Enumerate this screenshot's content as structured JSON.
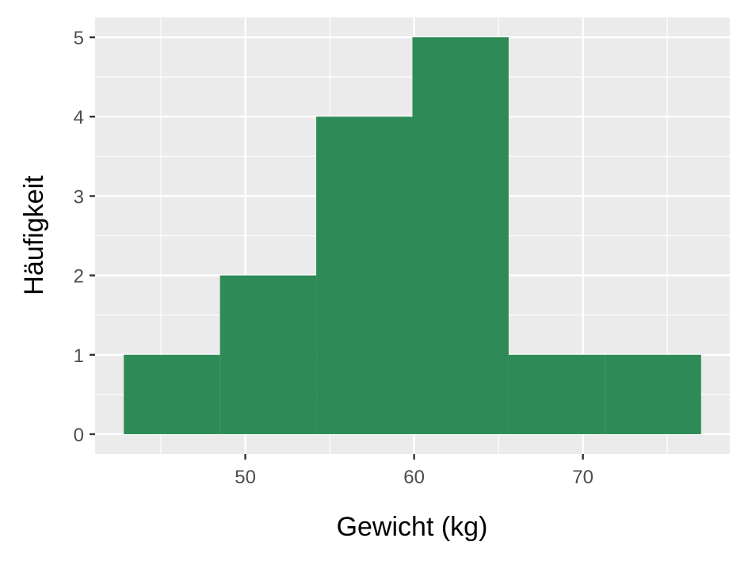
{
  "chart_data": {
    "type": "histogram",
    "xlabel": "Gewicht (kg)",
    "ylabel": "Häufigkeit",
    "bins": [
      {
        "x0": 42.8,
        "x1": 48.5,
        "count": 1
      },
      {
        "x0": 48.5,
        "x1": 54.2,
        "count": 2
      },
      {
        "x0": 54.2,
        "x1": 59.9,
        "count": 4
      },
      {
        "x0": 59.9,
        "x1": 65.6,
        "count": 5
      },
      {
        "x0": 65.6,
        "x1": 71.3,
        "count": 1
      },
      {
        "x0": 71.3,
        "x1": 77.0,
        "count": 1
      }
    ],
    "xticks": [
      50,
      60,
      70
    ],
    "yticks": [
      0,
      1,
      2,
      3,
      4,
      5
    ],
    "xlim": [
      41.1,
      78.7
    ],
    "ylim": [
      -0.25,
      5.25
    ],
    "bar_color": "#2E8B57",
    "panel_background": "#EBEBEB",
    "grid": true
  }
}
